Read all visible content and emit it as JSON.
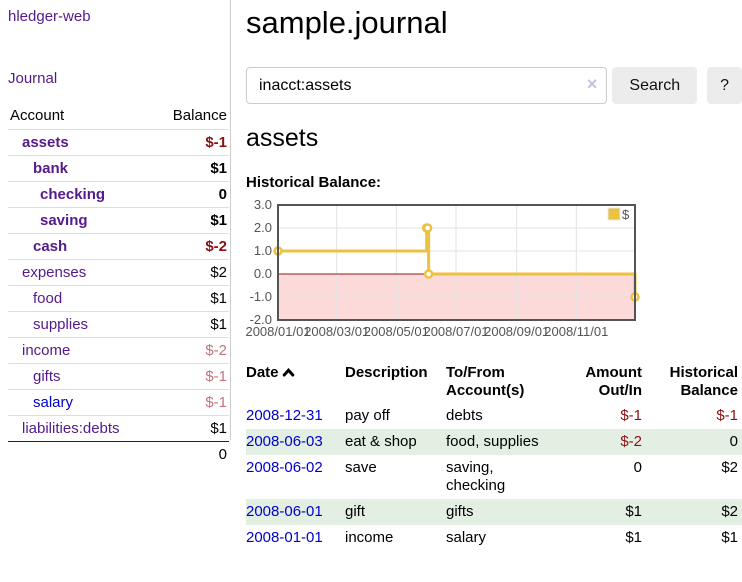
{
  "sidebar": {
    "app_title": "hledger-web",
    "journal_link": "Journal",
    "table": {
      "account_header": "Account",
      "balance_header": "Balance",
      "accounts": [
        {
          "name": "assets",
          "name_class": "d1 cur",
          "balance": "$-1",
          "balance_class": "cur neg"
        },
        {
          "name": "bank",
          "name_class": "d2 cur",
          "balance": "$1",
          "balance_class": "cur"
        },
        {
          "name": "checking",
          "name_class": "d3 cur",
          "balance": "0",
          "balance_class": "cur"
        },
        {
          "name": "saving",
          "name_class": "d3 cur",
          "balance": "$1",
          "balance_class": "cur"
        },
        {
          "name": "cash",
          "name_class": "d2 cur",
          "balance": "$-2",
          "balance_class": "cur neg"
        },
        {
          "name": "expenses",
          "name_class": "d1",
          "balance": "$2",
          "balance_class": ""
        },
        {
          "name": "food",
          "name_class": "d2",
          "balance": "$1",
          "balance_class": ""
        },
        {
          "name": "supplies",
          "name_class": "d2",
          "balance": "$1",
          "balance_class": ""
        },
        {
          "name": "income",
          "name_class": "d1",
          "balance": "$-2",
          "balance_class": "negfade"
        },
        {
          "name": "gifts",
          "name_class": "d2",
          "balance": "$-1",
          "balance_class": "negfade"
        },
        {
          "name": "salary",
          "name_class": "d2 unvisited",
          "balance": "$-1",
          "balance_class": "negfade"
        },
        {
          "name": "liabilities:debts",
          "name_class": "d1",
          "balance": "$1",
          "balance_class": ""
        }
      ],
      "total": "0"
    }
  },
  "main": {
    "title": "sample.journal",
    "search": {
      "query": "inacct:assets",
      "clear_icon": "×",
      "button_label": "Search",
      "help_label": "?"
    },
    "account_heading": "assets",
    "chart_title": "Historical Balance:"
  },
  "transactions": {
    "headers": {
      "date": "Date",
      "description": "Description",
      "accounts": "To/From Account(s)",
      "amount": "Amount Out/In",
      "balance": "Historical Balance"
    },
    "rows": [
      {
        "date": "2008-12-31",
        "description": "pay off",
        "accounts": "debts",
        "amount": "$-1",
        "amount_class": "neg",
        "balance": "$-1",
        "balance_class": "neg"
      },
      {
        "date": "2008-06-03",
        "description": "eat & shop",
        "accounts": "food, supplies",
        "amount": "$-2",
        "amount_class": "neg",
        "balance": "0",
        "balance_class": ""
      },
      {
        "date": "2008-06-02",
        "description": "save",
        "accounts": "saving, checking",
        "amount": "0",
        "amount_class": "",
        "balance": "$2",
        "balance_class": ""
      },
      {
        "date": "2008-06-01",
        "description": "gift",
        "accounts": "gifts",
        "amount": "$1",
        "amount_class": "",
        "balance": "$2",
        "balance_class": ""
      },
      {
        "date": "2008-01-01",
        "description": "income",
        "accounts": "salary",
        "amount": "$1",
        "amount_class": "",
        "balance": "$1",
        "balance_class": ""
      }
    ]
  },
  "chart_data": {
    "type": "line",
    "step": true,
    "title": "Historical Balance:",
    "series": [
      {
        "name": "$",
        "color": "#edc240",
        "points": [
          [
            "2008-01-01",
            1
          ],
          [
            "2008-06-01",
            2
          ],
          [
            "2008-06-02",
            2
          ],
          [
            "2008-06-03",
            0
          ],
          [
            "2008-12-31",
            -1
          ]
        ]
      }
    ],
    "x_ticks": [
      "2008/01/01",
      "2008/03/01",
      "2008/05/01",
      "2008/07/01",
      "2008/09/01",
      "2008/11/01"
    ],
    "y_ticks": [
      3.0,
      2.0,
      1.0,
      0.0,
      -1.0,
      -2.0
    ],
    "xlim": [
      "2008-01-01",
      "2008-12-31"
    ],
    "ylim": [
      -2,
      3
    ],
    "grid": true,
    "legend_position": "top-right",
    "negative_fill": "#fcdada",
    "zero_line_color": "#941616",
    "border_color": "#545454",
    "label_color": "#545454"
  },
  "colors": {
    "link_purple": "#551a8b",
    "link_blue": "#0000cc",
    "negative_red": "#8c1010",
    "negative_faded": "#c5737d",
    "row_green": "#e2efe2",
    "button_gray": "#ececec",
    "chart_gold": "#edc240",
    "chart_negative_fill": "#fcdada",
    "chart_zero_line": "#941616"
  }
}
